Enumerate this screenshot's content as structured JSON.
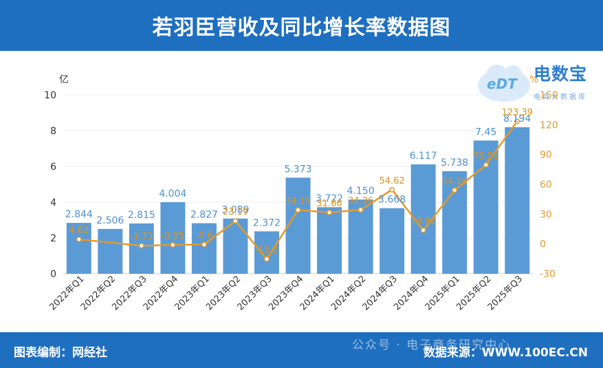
{
  "header": {
    "title": "若羽臣营收及同比增长率数据图"
  },
  "footer": {
    "author": "图表编制：网经社",
    "watermark": "公众号 · 电子商务研究中心",
    "source": "数据来源：WWW.100EC.CN"
  },
  "logo": {
    "brand": "电数宝",
    "sub": "电商大数据库",
    "edt": "eDT"
  },
  "colors": {
    "bar": "#5b9bd5",
    "line": "#e39a2b",
    "header": "#1f6fc0"
  },
  "chart_data": {
    "type": "bar",
    "title": "若羽臣营收及同比增长率数据图",
    "categories": [
      "2022年Q1",
      "2022年Q2",
      "2022年Q3",
      "2022年Q4",
      "2023年Q1",
      "2023年Q2",
      "2023年Q3",
      "2023年Q4",
      "2024年Q1",
      "2024年Q2",
      "2024年Q3",
      "2024年Q4",
      "2025年Q1",
      "2025年Q2",
      "2025年Q3"
    ],
    "y_left": {
      "unit": "亿",
      "ticks": [
        0,
        2,
        4,
        6,
        8,
        10
      ],
      "lim": [
        0,
        10
      ]
    },
    "y_right": {
      "unit": "%",
      "ticks": [
        -30,
        0,
        30,
        60,
        90,
        120,
        150
      ],
      "lim": [
        -30,
        150
      ]
    },
    "series": [
      {
        "type": "bar",
        "axis": "left",
        "values": [
          2.844,
          2.506,
          2.815,
          4.004,
          2.827,
          3.089,
          2.372,
          5.373,
          3.722,
          4.15,
          3.668,
          6.117,
          5.738,
          7.45,
          8.194
        ],
        "labels": [
          "2.844",
          "2.506",
          "2.815",
          "4.004",
          "2.827",
          "3.089",
          "2.372",
          "5.373",
          "3.722",
          "4.150",
          "3.668",
          "6.117",
          "5.738",
          "7.45",
          "8.194"
        ]
      },
      {
        "type": "line",
        "axis": "right",
        "values": [
          4.63,
          null,
          -1.73,
          -0.95,
          -0.6,
          23.19,
          -15.2,
          34.15,
          31.66,
          34.36,
          54.62,
          13.82,
          54.16,
          79.51,
          123.39
        ],
        "labels": [
          "4.63",
          "",
          "-1.73",
          "-0.95",
          "-0.6",
          "23.19",
          "-15.2",
          "34.15",
          "31.66",
          "34.36",
          "54.62",
          "13.82",
          "54.16",
          "79.51",
          "123.39"
        ]
      }
    ],
    "grid": true
  }
}
